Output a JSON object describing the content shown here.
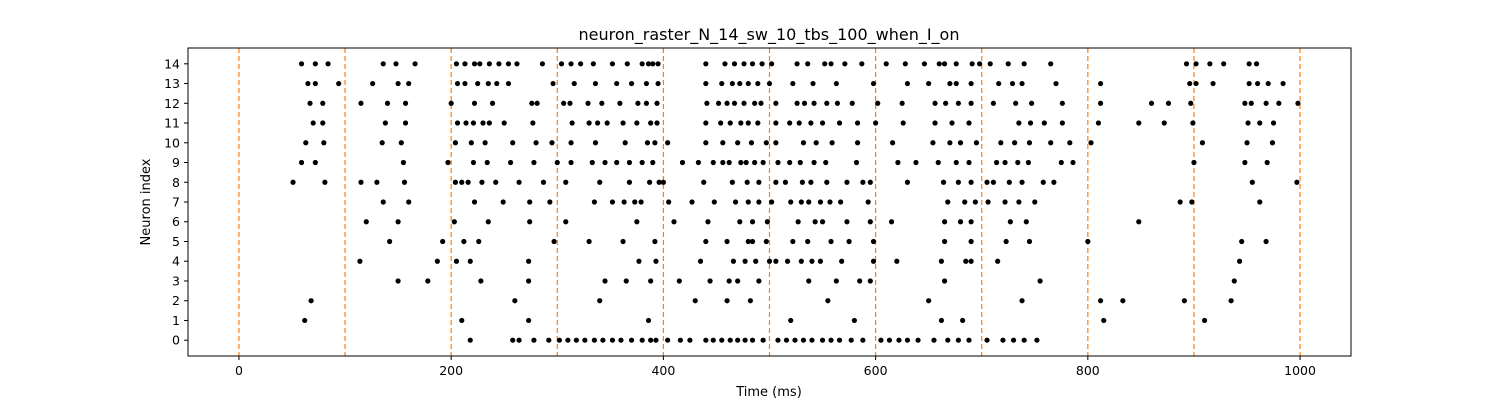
{
  "chart_data": {
    "type": "scatter",
    "title": "neuron_raster_N_14_sw_10_tbs_100_when_I_on",
    "xlabel": "Time (ms)",
    "ylabel": "Neuron index",
    "xlim": [
      -48,
      1048
    ],
    "ylim": [
      -0.8,
      14.8
    ],
    "xticks": [
      0,
      200,
      400,
      600,
      800,
      1000
    ],
    "yticks": [
      0,
      1,
      2,
      3,
      4,
      5,
      6,
      7,
      8,
      9,
      10,
      11,
      12,
      13,
      14
    ],
    "grid": false,
    "marker_color": "#000000",
    "vline_color": "#ff7f0e",
    "vlines": [
      0,
      100,
      200,
      300,
      400,
      500,
      600,
      700,
      800,
      900,
      1000
    ],
    "series": [
      {
        "neuron": 0,
        "spikes": [
          218,
          258,
          264,
          278,
          292,
          302,
          310,
          318,
          326,
          335,
          343,
          352,
          360,
          370,
          380,
          388,
          393,
          404,
          416,
          425,
          440,
          447,
          455,
          463,
          470,
          477,
          484,
          494,
          508,
          516,
          524,
          532,
          540,
          550,
          558,
          566,
          577,
          588,
          605,
          613,
          622,
          630,
          640,
          655,
          668,
          678,
          688,
          705,
          720,
          730,
          740,
          752
        ]
      },
      {
        "neuron": 1,
        "spikes": [
          62,
          210,
          273,
          386,
          520,
          580,
          662,
          682,
          815,
          910
        ]
      },
      {
        "neuron": 2,
        "spikes": [
          68,
          260,
          340,
          430,
          460,
          482,
          555,
          650,
          738,
          812,
          833,
          891,
          935
        ]
      },
      {
        "neuron": 3,
        "spikes": [
          150,
          178,
          228,
          273,
          345,
          365,
          388,
          415,
          444,
          462,
          470,
          490,
          537,
          563,
          585,
          595,
          665,
          755,
          938
        ]
      },
      {
        "neuron": 4,
        "spikes": [
          114,
          187,
          205,
          218,
          273,
          377,
          393,
          435,
          466,
          477,
          487,
          500,
          506,
          517,
          530,
          540,
          548,
          568,
          598,
          620,
          662,
          685,
          690,
          715,
          943
        ]
      },
      {
        "neuron": 5,
        "spikes": [
          142,
          192,
          212,
          226,
          297,
          330,
          362,
          392,
          440,
          460,
          480,
          484,
          497,
          522,
          536,
          558,
          575,
          598,
          665,
          690,
          723,
          745,
          800,
          945,
          968
        ]
      },
      {
        "neuron": 6,
        "spikes": [
          120,
          150,
          203,
          235,
          274,
          308,
          375,
          410,
          442,
          472,
          484,
          498,
          527,
          543,
          550,
          573,
          595,
          615,
          665,
          680,
          690,
          727,
          742,
          848
        ]
      },
      {
        "neuron": 7,
        "spikes": [
          136,
          160,
          222,
          249,
          274,
          293,
          335,
          352,
          363,
          373,
          379,
          405,
          427,
          448,
          468,
          480,
          490,
          502,
          520,
          530,
          537,
          548,
          557,
          567,
          593,
          668,
          684,
          694,
          706,
          722,
          735,
          750,
          887,
          898,
          962
        ]
      },
      {
        "neuron": 8,
        "spikes": [
          51,
          81,
          115,
          130,
          156,
          204,
          210,
          216,
          229,
          242,
          264,
          287,
          308,
          340,
          368,
          387,
          396,
          400,
          438,
          465,
          479,
          490,
          506,
          515,
          531,
          539,
          554,
          573,
          588,
          595,
          630,
          664,
          678,
          690,
          705,
          711,
          726,
          738,
          758,
          768,
          955,
          997
        ]
      },
      {
        "neuron": 9,
        "spikes": [
          59,
          72,
          155,
          197,
          221,
          234,
          256,
          278,
          300,
          313,
          333,
          345,
          356,
          368,
          380,
          390,
          418,
          433,
          447,
          456,
          462,
          473,
          478,
          486,
          494,
          508,
          519,
          529,
          542,
          553,
          582,
          621,
          638,
          659,
          676,
          688,
          714,
          722,
          734,
          744,
          775,
          786,
          900,
          948,
          969
        ]
      },
      {
        "neuron": 10,
        "spikes": [
          63,
          80,
          135,
          153,
          204,
          219,
          232,
          258,
          280,
          295,
          313,
          336,
          364,
          385,
          392,
          404,
          440,
          456,
          470,
          483,
          497,
          506,
          532,
          544,
          559,
          583,
          616,
          654,
          670,
          680,
          695,
          718,
          731,
          745,
          765,
          783,
          803,
          908,
          950,
          974
        ]
      },
      {
        "neuron": 11,
        "spikes": [
          70,
          79,
          138,
          157,
          206,
          214,
          221,
          230,
          236,
          250,
          277,
          314,
          330,
          338,
          347,
          362,
          375,
          388,
          394,
          440,
          454,
          463,
          473,
          480,
          489,
          506,
          519,
          528,
          539,
          550,
          566,
          583,
          600,
          626,
          656,
          672,
          688,
          735,
          746,
          759,
          776,
          810,
          848,
          872,
          899,
          951,
          962,
          975
        ]
      },
      {
        "neuron": 12,
        "spikes": [
          67,
          79,
          115,
          140,
          157,
          200,
          222,
          239,
          276,
          281,
          306,
          312,
          329,
          342,
          359,
          376,
          384,
          394,
          441,
          452,
          460,
          467,
          476,
          486,
          492,
          506,
          526,
          533,
          542,
          554,
          564,
          578,
          602,
          625,
          656,
          666,
          678,
          690,
          711,
          732,
          747,
          776,
          812,
          860,
          876,
          897,
          948,
          954,
          968,
          980,
          998
        ]
      },
      {
        "neuron": 13,
        "spikes": [
          65,
          72,
          94,
          126,
          150,
          160,
          206,
          213,
          225,
          235,
          243,
          254,
          296,
          316,
          336,
          356,
          370,
          384,
          395,
          440,
          455,
          465,
          472,
          480,
          489,
          500,
          522,
          541,
          563,
          598,
          630,
          650,
          670,
          676,
          690,
          716,
          729,
          738,
          770,
          812,
          896,
          902,
          918,
          952,
          960,
          970,
          984
        ]
      },
      {
        "neuron": 14,
        "spikes": [
          59,
          72,
          84,
          136,
          148,
          166,
          205,
          213,
          222,
          227,
          236,
          245,
          254,
          262,
          286,
          304,
          313,
          322,
          334,
          352,
          366,
          380,
          386,
          390,
          395,
          440,
          458,
          467,
          476,
          484,
          493,
          502,
          526,
          536,
          552,
          558,
          571,
          587,
          610,
          628,
          646,
          660,
          665,
          676,
          691,
          698,
          708,
          725,
          740,
          765,
          893,
          902,
          915,
          928,
          952,
          959
        ]
      }
    ]
  }
}
